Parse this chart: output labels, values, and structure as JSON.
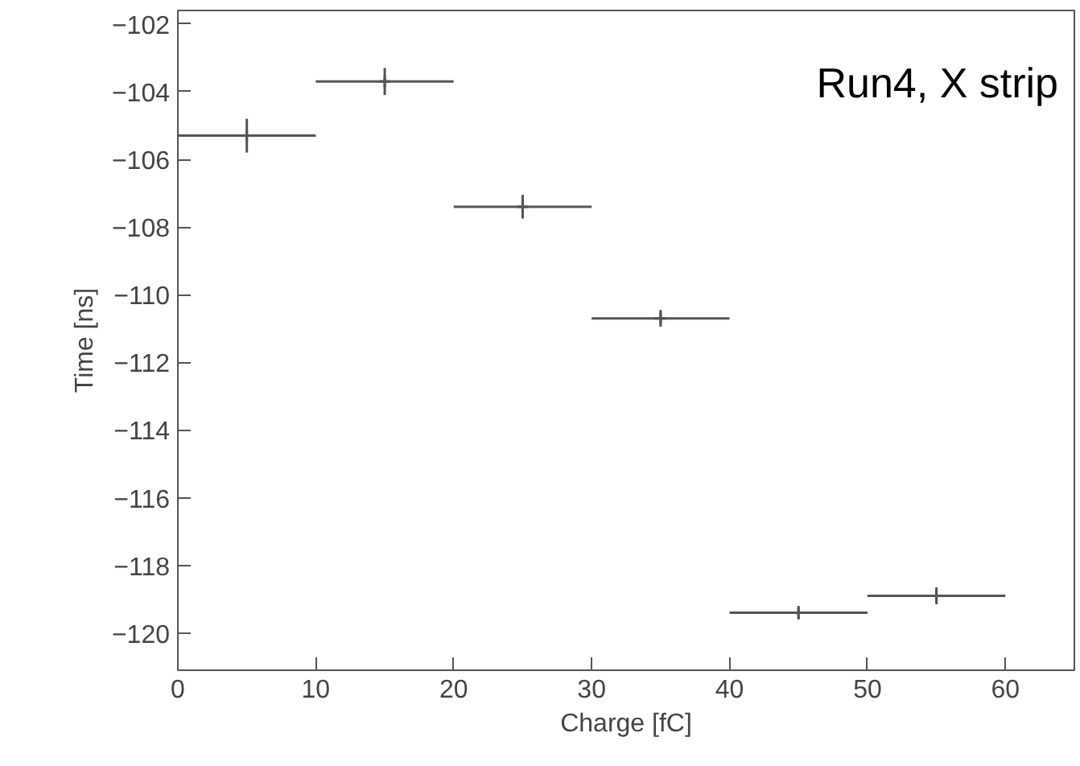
{
  "chart_data": {
    "type": "scatter",
    "xlabel": "Charge [fC]",
    "ylabel": "Time [ns]",
    "annotations": [
      "Run4, X strip"
    ],
    "x": [
      5,
      15,
      25,
      35,
      45,
      55
    ],
    "series": [
      {
        "color": "#555555",
        "values": [
          -105.3,
          -103.7,
          -107.4,
          -110.7,
          -119.4,
          -118.9
        ],
        "errors": [
          0.5,
          0.4,
          0.35,
          0.25,
          0.2,
          0.25
        ],
        "xerrors": [
          5,
          5,
          5,
          5,
          5,
          5
        ]
      }
    ],
    "marker": "cross",
    "xlim": [
      0,
      65
    ],
    "xticks": [
      0,
      10,
      20,
      30,
      40,
      50,
      60
    ],
    "ylim": [
      -121.1,
      -101.6
    ],
    "yticks": [
      -120,
      -118,
      -116,
      -114,
      -112,
      -110,
      -108,
      -106,
      -104,
      -102
    ],
    "grid": false
  }
}
